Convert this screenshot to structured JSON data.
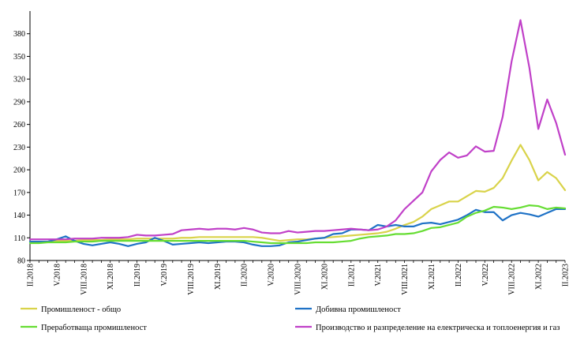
{
  "chart_data": {
    "type": "line",
    "title": "",
    "xlabel": "",
    "ylabel": "",
    "ylim": [
      80,
      410
    ],
    "yticks": [
      80,
      110,
      140,
      170,
      200,
      230,
      260,
      290,
      320,
      350,
      380
    ],
    "grid": false,
    "legend_position": "bottom",
    "x_tick_labels": [
      {
        "index": 0,
        "label": "II.2018"
      },
      {
        "index": 3,
        "label": "V.2018"
      },
      {
        "index": 6,
        "label": "VIII.2018"
      },
      {
        "index": 9,
        "label": "XI.2018"
      },
      {
        "index": 12,
        "label": "II.2019"
      },
      {
        "index": 15,
        "label": "V.2019"
      },
      {
        "index": 18,
        "label": "VIII.2019"
      },
      {
        "index": 21,
        "label": "XI.2019"
      },
      {
        "index": 24,
        "label": "II.2020"
      },
      {
        "index": 27,
        "label": "V.2020"
      },
      {
        "index": 30,
        "label": "VIII.2020"
      },
      {
        "index": 33,
        "label": "XI.2020"
      },
      {
        "index": 36,
        "label": "II.2021"
      },
      {
        "index": 39,
        "label": "V.2021"
      },
      {
        "index": 42,
        "label": "VIII.2021"
      },
      {
        "index": 45,
        "label": "XI.2021"
      },
      {
        "index": 48,
        "label": "II.2022"
      },
      {
        "index": 51,
        "label": "V.2022"
      },
      {
        "index": 54,
        "label": "VIII.2022"
      },
      {
        "index": 57,
        "label": "XI.2022"
      },
      {
        "index": 60,
        "label": "II.2023"
      }
    ],
    "series": [
      {
        "name": "Промишленост - общо",
        "color": "#d9d34a",
        "values": [
          105,
          105,
          105,
          106,
          106,
          106,
          107,
          107,
          107,
          108,
          108,
          108,
          109,
          109,
          109,
          109,
          109,
          110,
          110,
          111,
          111,
          111,
          111,
          111,
          111,
          111,
          110,
          108,
          106,
          107,
          108,
          108,
          109,
          110,
          111,
          112,
          113,
          114,
          115,
          116,
          118,
          122,
          127,
          131,
          138,
          148,
          153,
          158,
          158,
          165,
          172,
          171,
          176,
          189,
          212,
          233,
          213,
          186,
          197,
          189,
          173
        ]
      },
      {
        "name": "Добивна промишленост",
        "color": "#1f72c6",
        "values": [
          105,
          105,
          105,
          108,
          112,
          106,
          102,
          100,
          102,
          104,
          102,
          99,
          102,
          104,
          110,
          106,
          101,
          102,
          103,
          104,
          103,
          104,
          105,
          105,
          104,
          101,
          99,
          99,
          100,
          104,
          105,
          107,
          109,
          110,
          115,
          116,
          121,
          121,
          120,
          127,
          125,
          127,
          125,
          125,
          129,
          130,
          128,
          131,
          134,
          140,
          147,
          144,
          144,
          133,
          140,
          143,
          141,
          138,
          143,
          148,
          148
        ]
      },
      {
        "name": "Преработваща промишленост",
        "color": "#66dd33",
        "values": [
          103,
          103,
          104,
          104,
          104,
          105,
          105,
          105,
          106,
          106,
          106,
          106,
          106,
          106,
          106,
          106,
          106,
          106,
          106,
          106,
          106,
          106,
          106,
          106,
          106,
          105,
          104,
          103,
          103,
          103,
          103,
          103,
          104,
          104,
          104,
          105,
          106,
          109,
          111,
          112,
          113,
          115,
          115,
          116,
          119,
          123,
          124,
          127,
          130,
          138,
          143,
          146,
          151,
          150,
          148,
          150,
          153,
          152,
          148,
          150,
          149
        ]
      },
      {
        "name": "Производство и разпределение на електрическа и топлоенергия и газ",
        "color": "#c040c8",
        "values": [
          108,
          108,
          108,
          108,
          108,
          109,
          109,
          109,
          110,
          110,
          110,
          111,
          114,
          113,
          113,
          114,
          115,
          120,
          121,
          122,
          121,
          122,
          122,
          121,
          123,
          121,
          117,
          116,
          116,
          119,
          117,
          118,
          119,
          119,
          120,
          121,
          122,
          121,
          120,
          121,
          125,
          133,
          148,
          159,
          170,
          198,
          213,
          223,
          216,
          219,
          231,
          224,
          225,
          270,
          343,
          398,
          335,
          254,
          293,
          262,
          220
        ]
      }
    ]
  }
}
